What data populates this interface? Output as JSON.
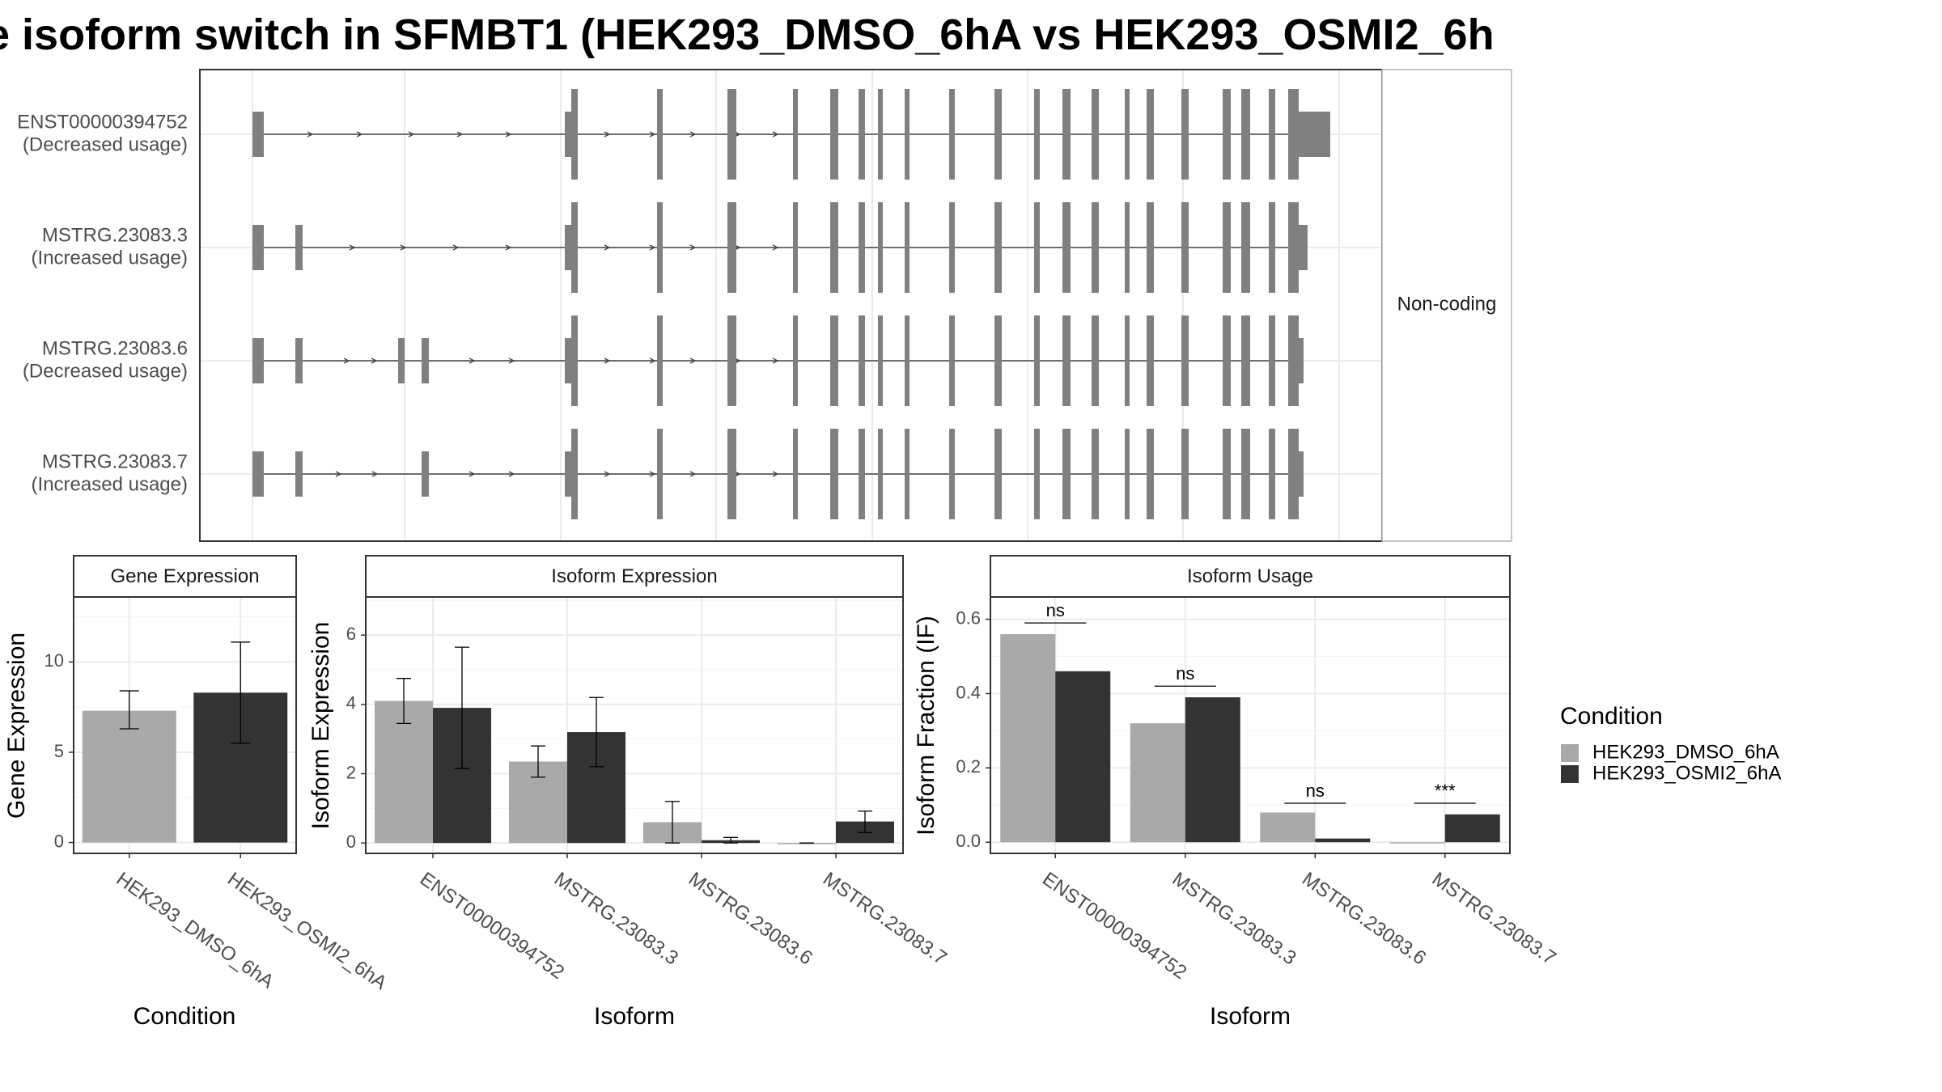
{
  "figure": {
    "title": "e isoform switch in SFMBT1 (HEK293_DMSO_6hA vs HEK293_OSMI2_6h"
  },
  "colors": {
    "dmso": "#a9a9a9",
    "osmi2": "#333333",
    "exon": "#808080",
    "panel_border": "#333333",
    "grid": "#ebebeb",
    "strip_border": "#b3b3b3"
  },
  "transcripts": {
    "strip_label": "Non-coding",
    "rows": [
      {
        "id": "ENST00000394752",
        "usage": "(Decreased usage)"
      },
      {
        "id": "MSTRG.23083.3",
        "usage": "(Increased usage)"
      },
      {
        "id": "MSTRG.23083.6",
        "usage": "(Decreased usage)"
      },
      {
        "id": "MSTRG.23083.7",
        "usage": "(Increased usage)"
      }
    ]
  },
  "legend": {
    "title": "Condition",
    "items": [
      {
        "label": "HEK293_DMSO_6hA",
        "color": "#a9a9a9"
      },
      {
        "label": "HEK293_OSMI2_6hA",
        "color": "#333333"
      }
    ]
  },
  "chart_data": [
    {
      "type": "bar",
      "title": "Gene Expression",
      "xlabel": "Condition",
      "ylabel": "Gene Expression",
      "categories": [
        "HEK293_DMSO_6hA",
        "HEK293_OSMI2_6hA"
      ],
      "values": [
        7.3,
        8.3
      ],
      "error_low": [
        6.3,
        5.5
      ],
      "error_high": [
        8.4,
        11.1
      ],
      "ylim": [
        -0.6,
        13.6
      ],
      "yticks": [
        0,
        5,
        10
      ],
      "grid": true
    },
    {
      "type": "bar",
      "title": "Isoform Expression",
      "xlabel": "Isoform",
      "ylabel": "Isoform Expression",
      "categories": [
        "ENST00000394752",
        "MSTRG.23083.3",
        "MSTRG.23083.6",
        "MSTRG.23083.7"
      ],
      "series": [
        {
          "name": "HEK293_DMSO_6hA",
          "values": [
            4.1,
            2.35,
            0.6,
            0.0
          ],
          "error_low": [
            3.45,
            1.9,
            0.0,
            0.0
          ],
          "error_high": [
            4.75,
            2.8,
            1.2,
            0.0
          ]
        },
        {
          "name": "HEK293_OSMI2_6hA",
          "values": [
            3.9,
            3.2,
            0.08,
            0.62
          ],
          "error_low": [
            2.15,
            2.2,
            0.0,
            0.3
          ],
          "error_high": [
            5.65,
            4.2,
            0.16,
            0.92
          ]
        }
      ],
      "ylim": [
        -0.3,
        7.1
      ],
      "yticks": [
        0,
        2,
        4,
        6
      ],
      "grid": true
    },
    {
      "type": "bar",
      "title": "Isoform Usage",
      "xlabel": "Isoform",
      "ylabel": "Isoform Fraction (IF)",
      "categories": [
        "ENST00000394752",
        "MSTRG.23083.3",
        "MSTRG.23083.6",
        "MSTRG.23083.7"
      ],
      "series": [
        {
          "name": "HEK293_DMSO_6hA",
          "values": [
            0.56,
            0.32,
            0.08,
            0.0
          ]
        },
        {
          "name": "HEK293_OSMI2_6hA",
          "values": [
            0.46,
            0.39,
            0.01,
            0.075
          ]
        }
      ],
      "significance": [
        "ns",
        "ns",
        "ns",
        "***"
      ],
      "sig_line_y": [
        0.59,
        0.42,
        0.105,
        0.105
      ],
      "ylim": [
        -0.03,
        0.66
      ],
      "yticks": [
        0.0,
        0.2,
        0.4,
        0.6
      ],
      "ytick_labels": [
        "0.0",
        "0.2",
        "0.4",
        "0.6"
      ],
      "grid": true
    }
  ]
}
